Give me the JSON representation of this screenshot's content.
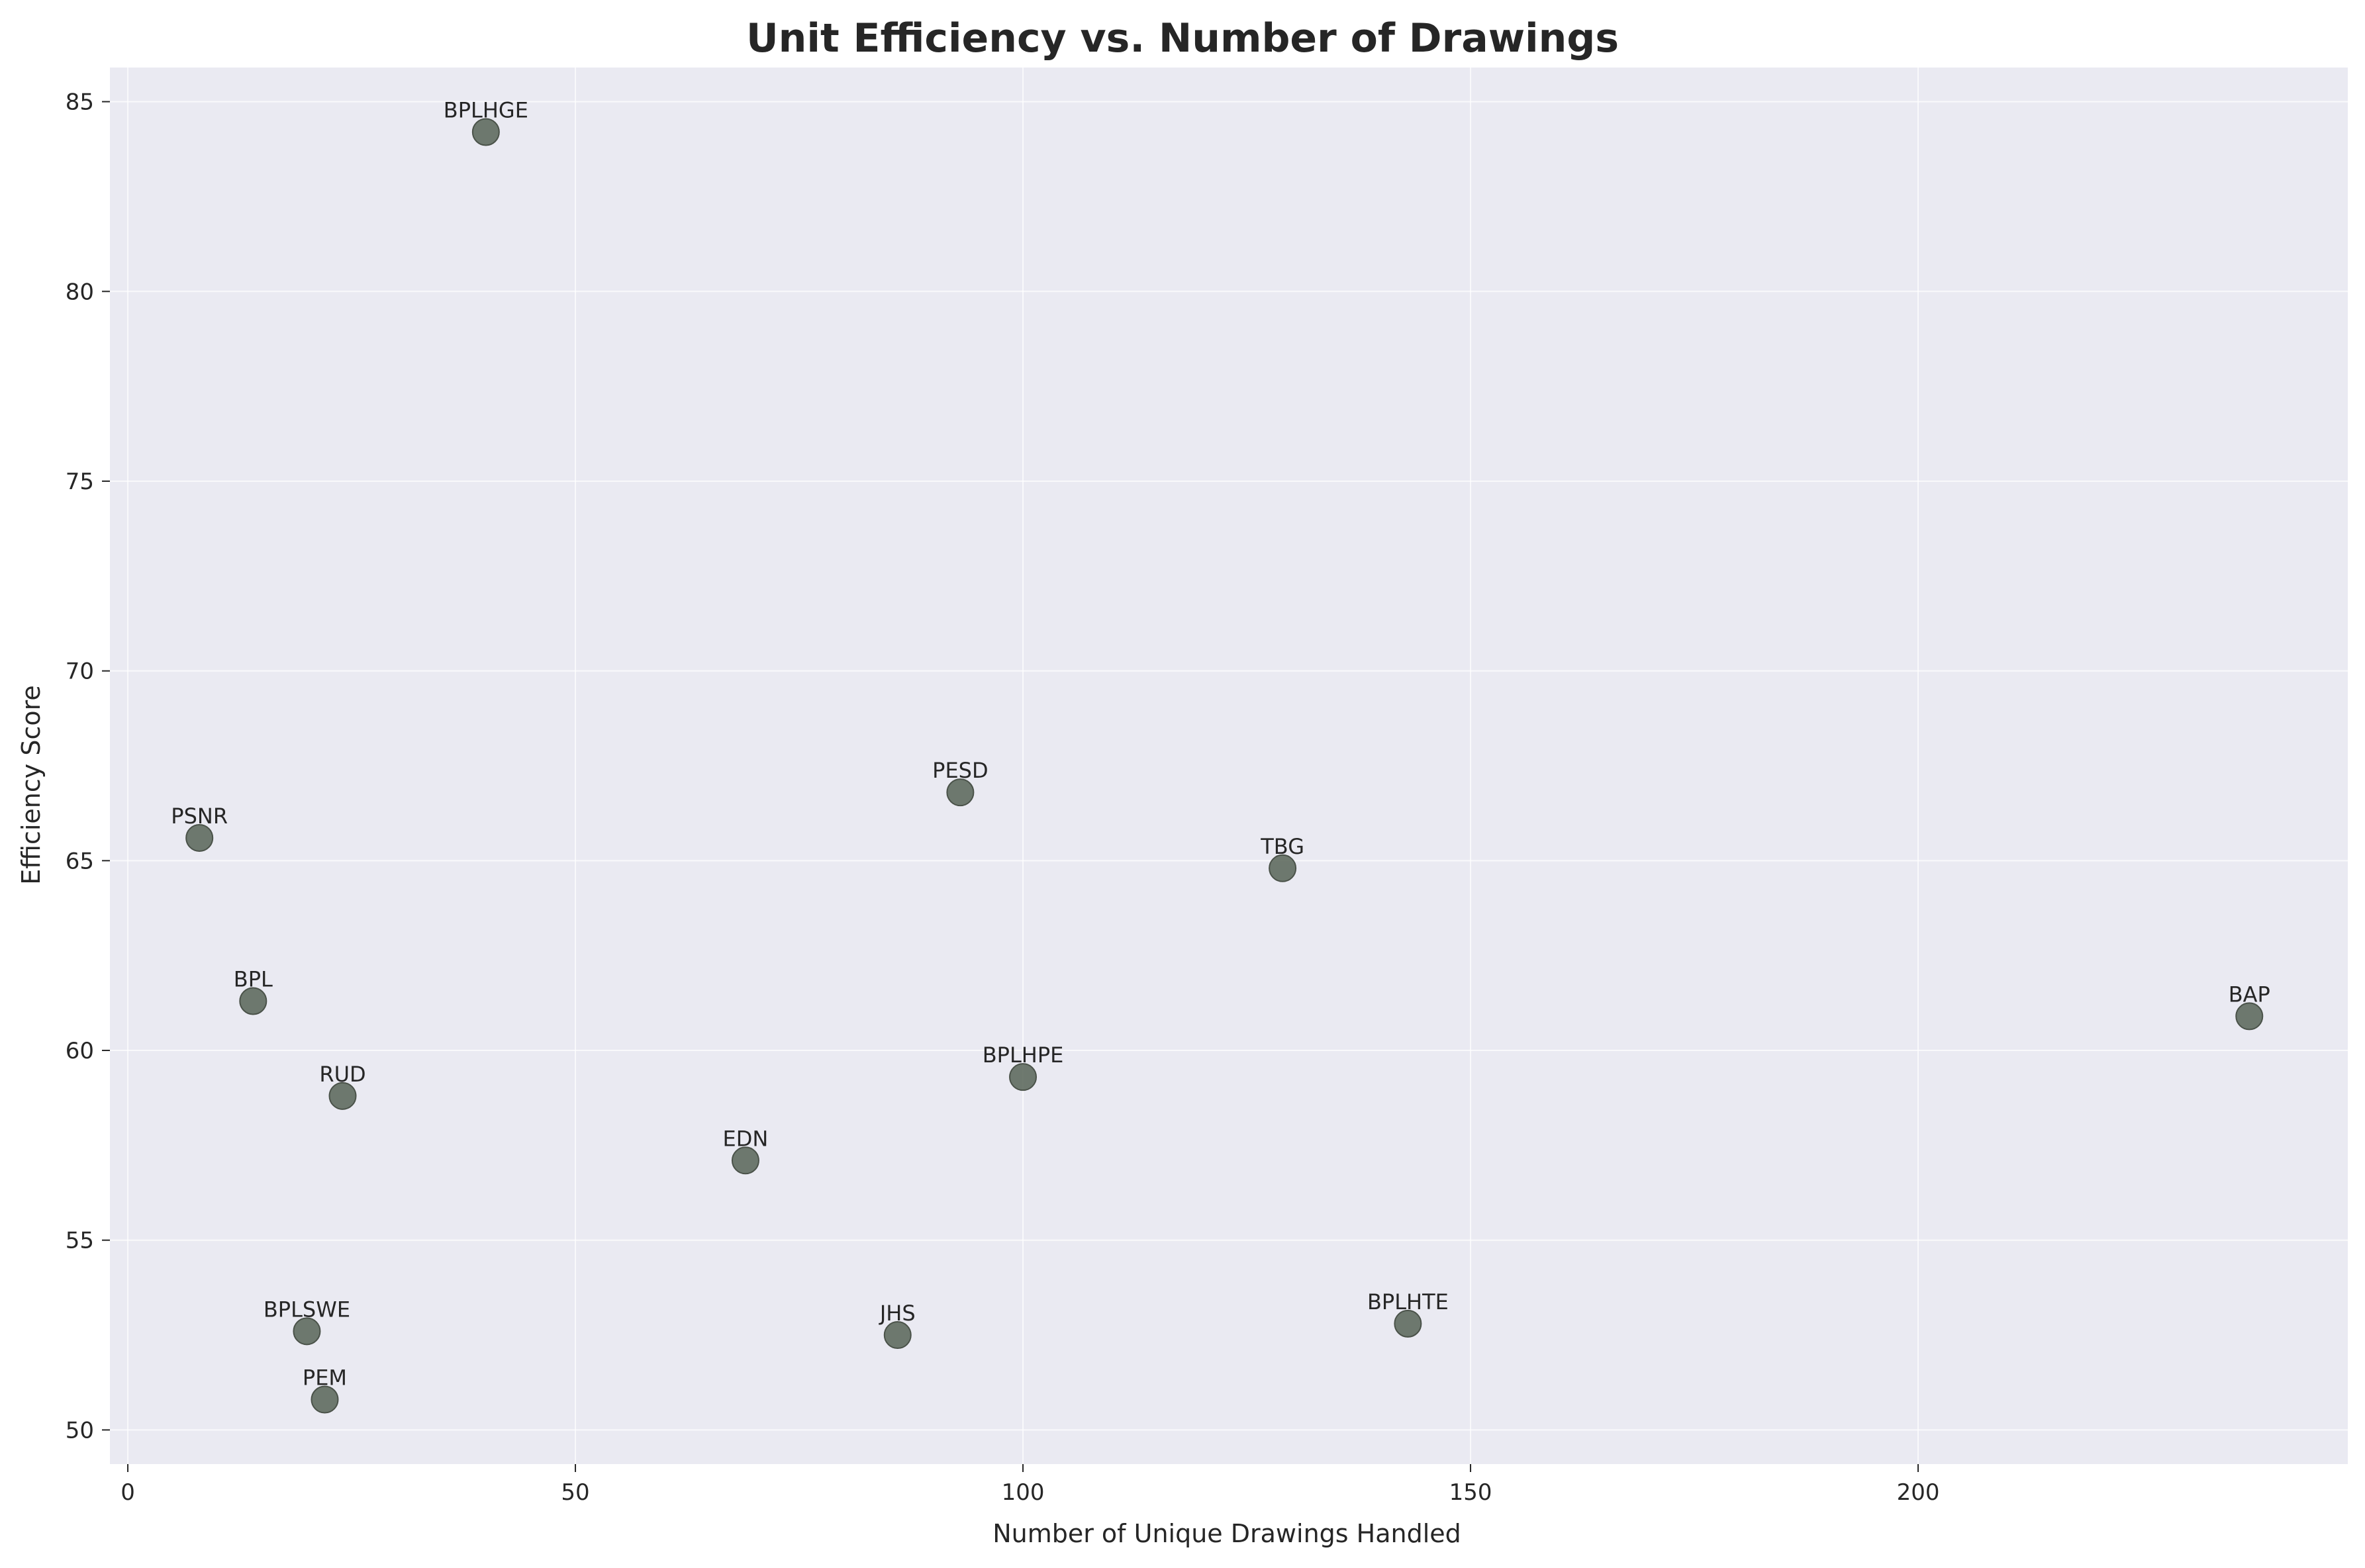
{
  "chart_data": {
    "type": "scatter",
    "title": "Unit Efficiency vs. Number of Drawings",
    "xlabel": "Number of Unique Drawings Handled",
    "ylabel": "Efficiency Score",
    "xlim": [
      -2,
      248
    ],
    "ylim": [
      49.1,
      85.9
    ],
    "xticks": [
      0,
      50,
      100,
      150,
      200
    ],
    "yticks": [
      50,
      55,
      60,
      65,
      70,
      75,
      80,
      85
    ],
    "grid": true,
    "background_color": "#EAEAF2",
    "grid_color": "#FFFFFF",
    "marker_color": "#5F6B5F",
    "points": [
      {
        "label": "BPLHGE",
        "x": 40,
        "y": 84.2
      },
      {
        "label": "PSNR",
        "x": 8,
        "y": 65.6
      },
      {
        "label": "BPL",
        "x": 14,
        "y": 61.3
      },
      {
        "label": "RUD",
        "x": 24,
        "y": 58.8
      },
      {
        "label": "BPLSWE",
        "x": 20,
        "y": 52.6
      },
      {
        "label": "PEM",
        "x": 22,
        "y": 50.8
      },
      {
        "label": "EDN",
        "x": 69,
        "y": 57.1
      },
      {
        "label": "JHS",
        "x": 86,
        "y": 52.5
      },
      {
        "label": "PESD",
        "x": 93,
        "y": 66.8
      },
      {
        "label": "BPLHPE",
        "x": 100,
        "y": 59.3
      },
      {
        "label": "TBG",
        "x": 129,
        "y": 64.8
      },
      {
        "label": "BPLHTE",
        "x": 143,
        "y": 52.8
      },
      {
        "label": "BAP",
        "x": 237,
        "y": 60.9
      }
    ]
  }
}
